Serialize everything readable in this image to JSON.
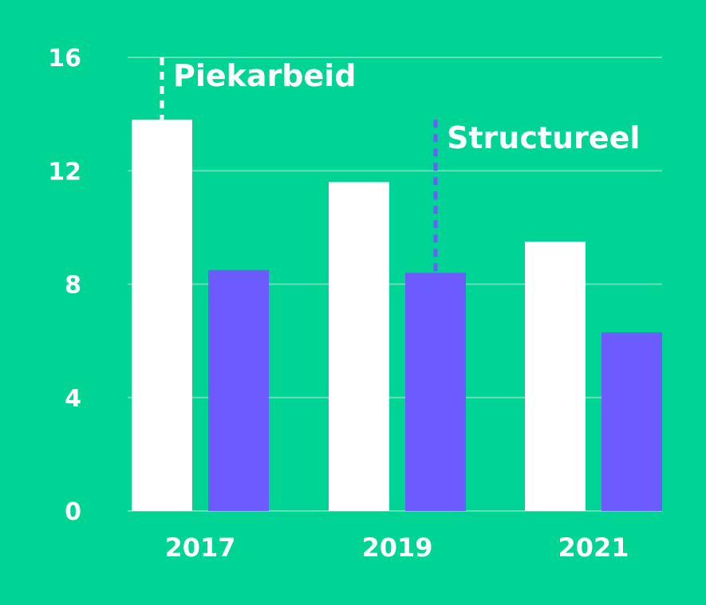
{
  "chart_data": {
    "type": "bar",
    "categories": [
      "2017",
      "2019",
      "2021"
    ],
    "series": [
      {
        "values": [
          13.8,
          11.6,
          9.5
        ],
        "color": "#ffffff"
      },
      {
        "values": [
          8.5,
          8.4,
          6.3
        ],
        "color": "#6c5cff"
      }
    ],
    "ylim": [
      0,
      16
    ],
    "yticks": [
      0,
      4,
      8,
      12,
      16
    ],
    "grid": true,
    "annotations": [
      {
        "text": "Piekarbeid",
        "category": "2017",
        "series": 0,
        "top": 16,
        "line_style": "dashed",
        "line_color": "#ffffff"
      },
      {
        "text": "Structureel",
        "category": "2019",
        "series": 1,
        "top": 13.8,
        "line_style": "dashed",
        "line_color": "#6c5cff"
      }
    ],
    "background": "#00d494",
    "gridline_color": "#5fe3b6"
  }
}
